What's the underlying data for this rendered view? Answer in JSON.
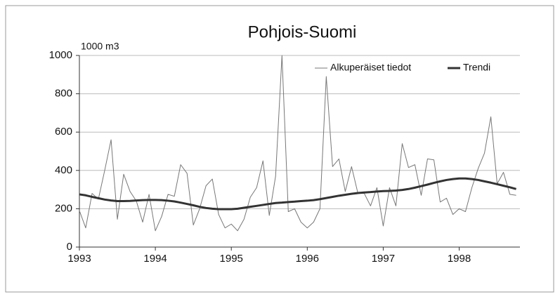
{
  "chart_data": {
    "type": "line",
    "title": "Pohjois-Suomi",
    "y_label": "1000 m3",
    "x": [
      1993,
      1993.083,
      1993.167,
      1993.25,
      1993.333,
      1993.417,
      1993.5,
      1993.583,
      1993.667,
      1993.75,
      1993.833,
      1993.917,
      1994,
      1994.083,
      1994.167,
      1994.25,
      1994.333,
      1994.417,
      1994.5,
      1994.583,
      1994.667,
      1994.75,
      1994.833,
      1994.917,
      1995,
      1995.083,
      1995.167,
      1995.25,
      1995.333,
      1995.417,
      1995.5,
      1995.583,
      1995.667,
      1995.75,
      1995.833,
      1995.917,
      1996,
      1996.083,
      1996.167,
      1996.25,
      1996.333,
      1996.417,
      1996.5,
      1996.583,
      1996.667,
      1996.75,
      1996.833,
      1996.917,
      1997,
      1997.083,
      1997.167,
      1997.25,
      1997.333,
      1997.417,
      1997.5,
      1997.583,
      1997.667,
      1997.75,
      1997.833,
      1997.917,
      1998,
      1998.083,
      1998.167,
      1998.25,
      1998.333,
      1998.417,
      1998.5,
      1998.583,
      1998.667,
      1998.75
    ],
    "series": [
      {
        "name": "Alkuperäiset tiedot",
        "color": "#777777",
        "width": 1,
        "values": [
          190,
          100,
          280,
          250,
          400,
          560,
          145,
          380,
          290,
          240,
          130,
          275,
          85,
          160,
          275,
          265,
          430,
          385,
          115,
          200,
          320,
          355,
          170,
          100,
          120,
          85,
          145,
          260,
          310,
          450,
          165,
          370,
          1000,
          185,
          200,
          130,
          100,
          130,
          200,
          890,
          420,
          460,
          290,
          420,
          280,
          280,
          215,
          310,
          110,
          310,
          215,
          540,
          415,
          430,
          270,
          460,
          455,
          235,
          255,
          170,
          200,
          185,
          310,
          410,
          490,
          680,
          330,
          390,
          275,
          270
        ]
      },
      {
        "name": "Trendi",
        "color": "#333333",
        "width": 3,
        "values": [
          275,
          270,
          262,
          255,
          248,
          243,
          240,
          240,
          241,
          243,
          245,
          246,
          246,
          245,
          242,
          238,
          232,
          225,
          218,
          210,
          204,
          200,
          198,
          198,
          198,
          200,
          205,
          210,
          215,
          220,
          225,
          230,
          232,
          235,
          237,
          240,
          242,
          245,
          250,
          256,
          262,
          268,
          273,
          278,
          282,
          285,
          287,
          290,
          292,
          293,
          295,
          298,
          303,
          310,
          318,
          326,
          335,
          343,
          350,
          355,
          358,
          358,
          355,
          350,
          343,
          336,
          328,
          320,
          312,
          303
        ]
      }
    ],
    "xlim": [
      1993,
      1998.8
    ],
    "xticks": [
      1993,
      1994,
      1995,
      1996,
      1997,
      1998
    ],
    "ylim": [
      0,
      1000
    ],
    "yticks": [
      0,
      200,
      400,
      600,
      800,
      1000
    ],
    "grid": true
  }
}
